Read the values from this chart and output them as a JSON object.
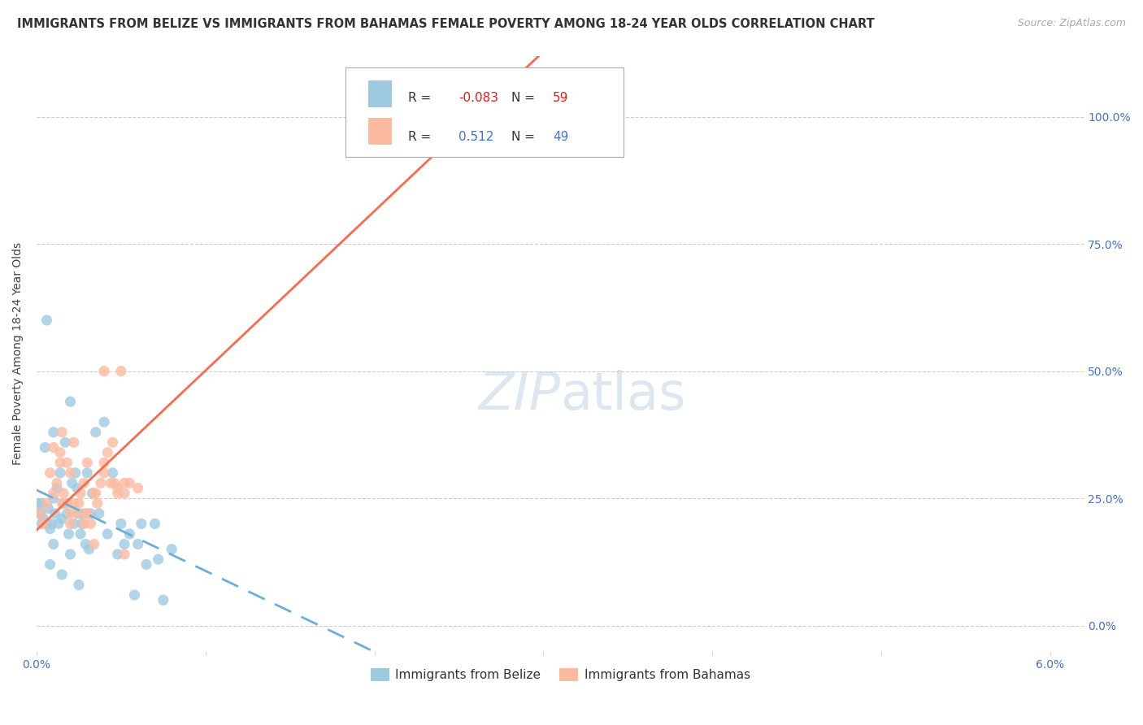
{
  "title": "IMMIGRANTS FROM BELIZE VS IMMIGRANTS FROM BAHAMAS FEMALE POVERTY AMONG 18-24 YEAR OLDS CORRELATION CHART",
  "source": "Source: ZipAtlas.com",
  "ylabel": "Female Poverty Among 18-24 Year Olds",
  "xlim": [
    0.0,
    0.062
  ],
  "ylim": [
    -0.05,
    1.12
  ],
  "xticks": [
    0.0,
    0.01,
    0.02,
    0.03,
    0.04,
    0.05,
    0.06
  ],
  "xticklabels": [
    "0.0%",
    "",
    "",
    "",
    "",
    "",
    "6.0%"
  ],
  "yticks": [
    0.0,
    0.25,
    0.5,
    0.75,
    1.0
  ],
  "yticklabels_right": [
    "0.0%",
    "25.0%",
    "50.0%",
    "75.0%",
    "100.0%"
  ],
  "belize_color": "#9ecae1",
  "bahamas_color": "#fcbba1",
  "belize_line_color": "#6baed6",
  "bahamas_line_color": "#fb6a4a",
  "legend_R_belize": "-0.083",
  "legend_N_belize": "59",
  "legend_R_bahamas": "0.512",
  "legend_N_bahamas": "49",
  "watermark": "ZIPatlas",
  "background_color": "#ffffff",
  "grid_color": "#cccccc",
  "axis_color": "#4472c4"
}
